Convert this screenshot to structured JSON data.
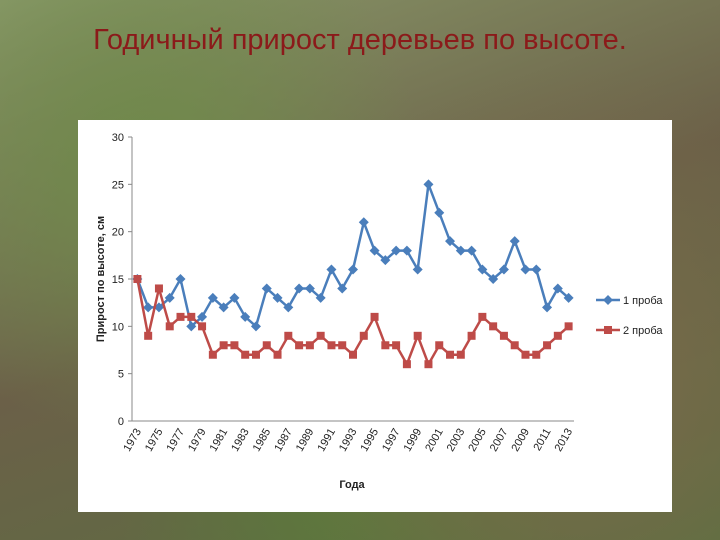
{
  "chart_data": {
    "type": "line",
    "title": "Годичный прирост деревьев по высоте.",
    "x_label": "Года",
    "y_label": "Прирост по высоте, см",
    "categories": [
      "1973",
      null,
      "1975",
      null,
      "1977",
      null,
      "1979",
      null,
      "1981",
      null,
      "1983",
      null,
      "1985",
      null,
      "1987",
      null,
      "1989",
      null,
      "1991",
      null,
      "1993",
      null,
      "1995",
      null,
      "1997",
      null,
      "1999",
      null,
      "2001",
      null,
      "2003",
      null,
      "2005",
      null,
      "2007",
      null,
      "2009",
      null,
      "2011",
      null,
      "2013"
    ],
    "series": [
      {
        "name": "1 проба",
        "color": "#4a7ebb",
        "marker": "diamond",
        "values": [
          15,
          12,
          12,
          13,
          15,
          10,
          11,
          13,
          12,
          13,
          11,
          10,
          14,
          13,
          12,
          14,
          14,
          13,
          16,
          14,
          16,
          21,
          18,
          17,
          18,
          18,
          16,
          25,
          22,
          19,
          18,
          18,
          16,
          15,
          16,
          19,
          16,
          16,
          12,
          14,
          13
        ]
      },
      {
        "name": "2 проба",
        "color": "#be4b48",
        "marker": "square",
        "values": [
          15,
          9,
          14,
          10,
          11,
          11,
          10,
          7,
          8,
          8,
          7,
          7,
          8,
          7,
          9,
          8,
          8,
          9,
          8,
          8,
          7,
          9,
          11,
          8,
          8,
          6,
          9,
          6,
          8,
          7,
          7,
          9,
          11,
          10,
          9,
          8,
          7,
          7,
          8,
          9,
          10
        ]
      }
    ],
    "ylim": [
      0,
      30
    ],
    "yticks": [
      0,
      5,
      10,
      15,
      20,
      25,
      30
    ],
    "grid": false,
    "legend": "right"
  }
}
